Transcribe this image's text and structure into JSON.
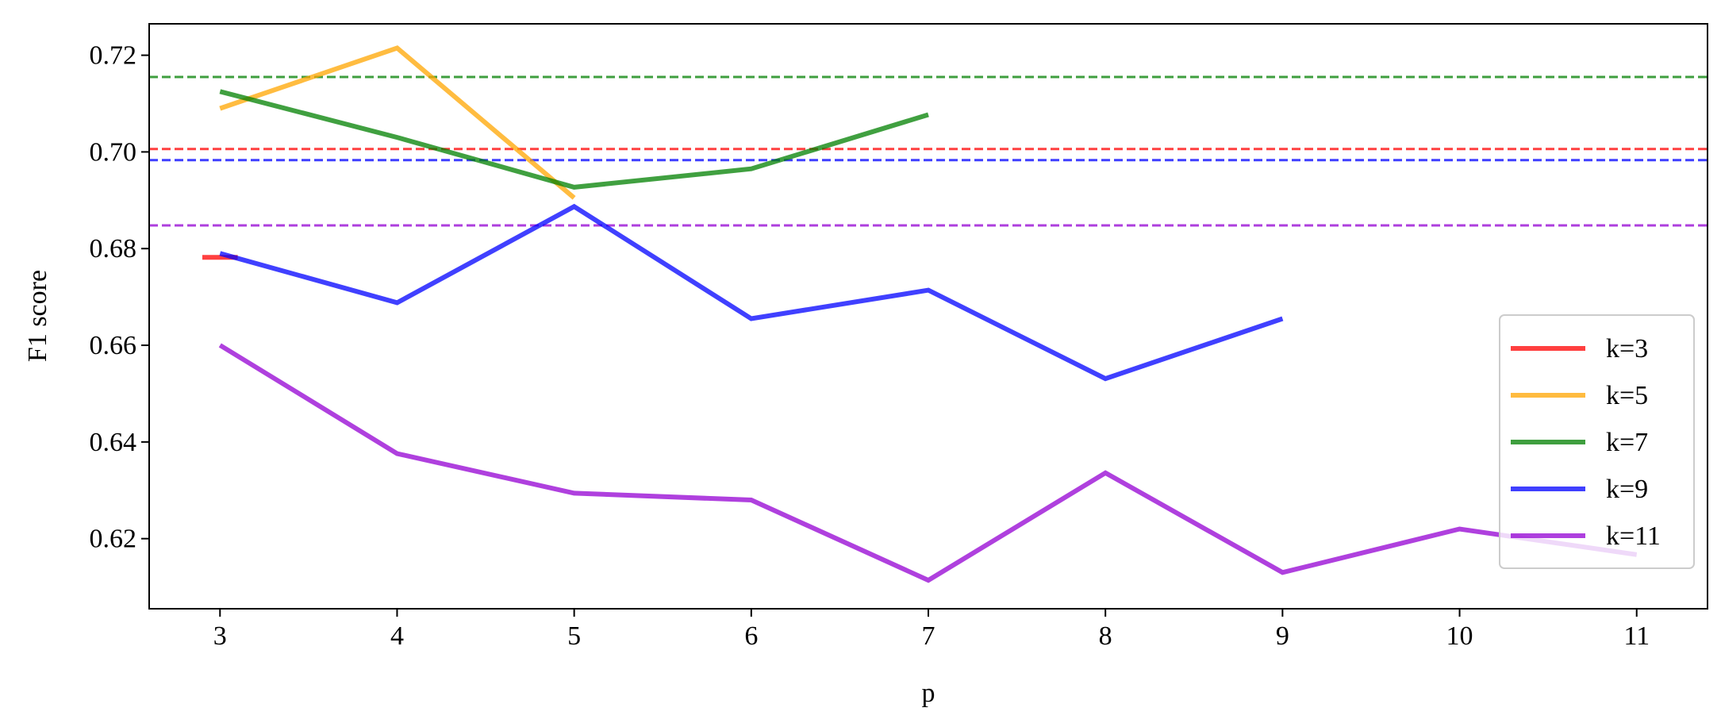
{
  "chart_data": {
    "type": "line",
    "title": "",
    "xlabel": "p",
    "ylabel": "F1 score",
    "xlim": [
      2.6,
      11.4
    ],
    "ylim": [
      0.6055,
      0.7265
    ],
    "xticks": [
      3,
      4,
      5,
      6,
      7,
      8,
      9,
      10,
      11
    ],
    "yticks": [
      0.62,
      0.64,
      0.66,
      0.68,
      0.7,
      0.72
    ],
    "ytick_labels": [
      "0.62",
      "0.64",
      "0.66",
      "0.68",
      "0.70",
      "0.72"
    ],
    "grid": false,
    "legend_position": "lower-right",
    "series": [
      {
        "name": "k=3",
        "color": "#ff0000",
        "x": [
          2.9,
          3.1
        ],
        "values": [
          0.6782,
          0.6782
        ],
        "baseline": 0.7006
      },
      {
        "name": "k=5",
        "color": "#ffa500",
        "x": [
          3,
          4,
          5
        ],
        "values": [
          0.709,
          0.7215,
          0.6905
        ],
        "baseline": null
      },
      {
        "name": "k=7",
        "color": "#008000",
        "x": [
          3,
          4,
          5,
          6,
          7
        ],
        "values": [
          0.7125,
          0.703,
          0.6927,
          0.6965,
          0.7077
        ],
        "baseline": 0.7155
      },
      {
        "name": "k=9",
        "color": "#0000ff",
        "x": [
          3,
          4,
          5,
          6,
          7,
          8,
          9
        ],
        "values": [
          0.679,
          0.6688,
          0.6887,
          0.6655,
          0.6714,
          0.6531,
          0.6655
        ],
        "baseline": 0.6983
      },
      {
        "name": "k=11",
        "color": "#9400d3",
        "x": [
          3,
          4,
          5,
          6,
          7,
          8,
          9,
          10,
          11
        ],
        "values": [
          0.66,
          0.6376,
          0.6294,
          0.628,
          0.6114,
          0.6336,
          0.613,
          0.622,
          0.6167
        ],
        "baseline": 0.6848
      }
    ]
  }
}
